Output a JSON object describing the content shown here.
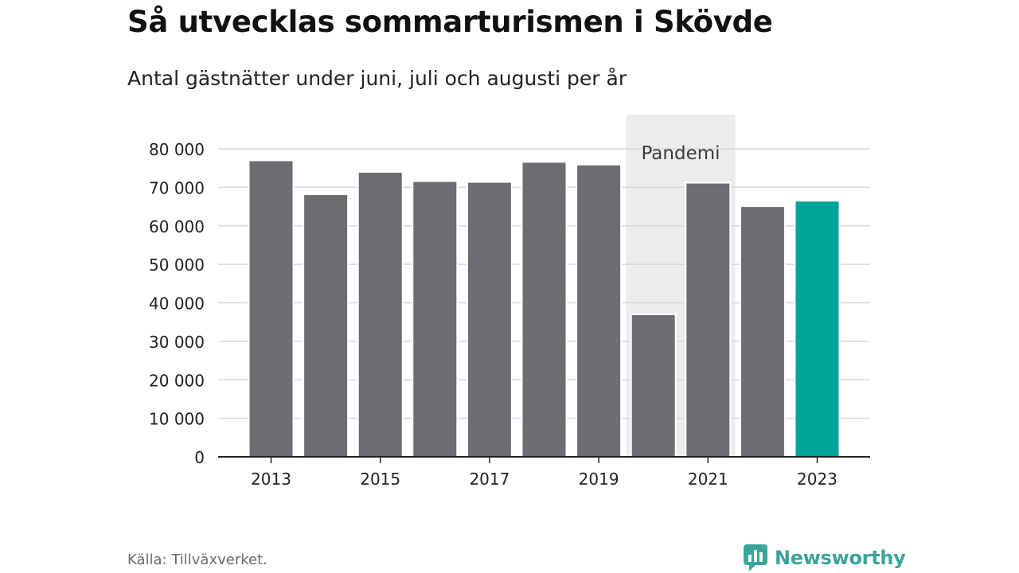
{
  "header": {
    "title": "Så utvecklas sommarturismen i Skövde",
    "subtitle": "Antal gästnätter under juni, juli och augusti per år"
  },
  "footer": {
    "source": "Källa: Tillväxverket.",
    "brand": "Newsworthy",
    "brand_icon": "newsworthy-logo-icon"
  },
  "chart_data": {
    "type": "bar",
    "title": "Så utvecklas sommarturismen i Skövde",
    "subtitle": "Antal gästnätter under juni, juli och augusti per år",
    "xlabel": "",
    "ylabel": "",
    "categories": [
      "2013",
      "2014",
      "2015",
      "2016",
      "2017",
      "2018",
      "2019",
      "2020",
      "2021",
      "2022",
      "2023"
    ],
    "values": [
      77000,
      68200,
      74000,
      71600,
      71400,
      76600,
      75900,
      37000,
      71200,
      65100,
      66500
    ],
    "x_tick_labels": [
      "2013",
      "",
      "2015",
      "",
      "2017",
      "",
      "2019",
      "",
      "2021",
      "",
      "2023"
    ],
    "ylim": [
      0,
      80000
    ],
    "y_ticks": [
      0,
      10000,
      20000,
      30000,
      40000,
      50000,
      60000,
      70000,
      80000
    ],
    "y_tick_labels": [
      "0",
      "10 000",
      "20 000",
      "30 000",
      "40 000",
      "50 000",
      "60 000",
      "70 000",
      "80 000"
    ],
    "grid": true,
    "highlight_category": "2023",
    "colors": {
      "bar": "#6d6c73",
      "highlight": "#00a398",
      "band": "#ececec",
      "grid": "#d9d9d9",
      "axis": "#222222"
    },
    "annotations": [
      {
        "label": "Pandemi",
        "x_from": "2020",
        "x_to": "2021"
      }
    ]
  }
}
